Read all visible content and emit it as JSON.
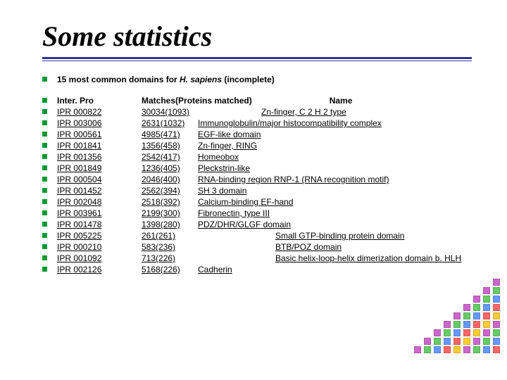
{
  "title": "Some statistics",
  "intro_prefix": "15 most common domains for ",
  "intro_italic": "H. sapiens",
  "intro_suffix": " (incomplete)",
  "header": {
    "c1": "Inter. Pro",
    "c2": "Matches(Proteins matched)",
    "c3": "Name"
  },
  "rows": [
    {
      "id": "IPR 000822",
      "m": "30034(1093)",
      "name": "Zn-finger, C 2 H 2 type",
      "name_indent": 90
    },
    {
      "id": "IPR 003006",
      "m": "2631(1032)",
      "name": "Immunoglobulin/major histocompatibility complex",
      "name_indent": 0
    },
    {
      "id": "IPR 000561",
      "m": "4985(471)",
      "name": "EGF-like domain",
      "name_indent": 0
    },
    {
      "id": "IPR 001841",
      "m": "1356(458)",
      "name": "Zn-finger, RING",
      "name_indent": 0
    },
    {
      "id": "IPR 001356",
      "m": "2542(417)",
      "name": "Homeobox",
      "name_indent": 0
    },
    {
      "id": "IPR 001849",
      "m": "1236(405)",
      "name": "Pleckstrin-like",
      "name_indent": 0
    },
    {
      "id": "IPR 000504",
      "m": "2046(400)",
      "name": "RNA-binding region RNP-1 (RNA recognition motif)",
      "name_indent": 0
    },
    {
      "id": "IPR 001452",
      "m": "2562(394)",
      "name": "SH 3 domain",
      "name_indent": 0
    },
    {
      "id": "IPR 002048",
      "m": "2518(392)",
      "name": "Calcium-binding EF-hand",
      "name_indent": 0
    },
    {
      "id": "IPR 003961",
      "m": "2199(300)",
      "name": "Fibronectin, type III",
      "name_indent": 0
    },
    {
      "id": "IPR 001478",
      "m": "1398(280)",
      "name": "PDZ/DHR/GLGF domain",
      "name_indent": 0
    },
    {
      "id": "IPR 005225",
      "m": "261(261)",
      "name": "Small GTP-binding protein domain",
      "name_indent": 110
    },
    {
      "id": "IPR 000210",
      "m": "583(236)",
      "name": "BTB/POZ domain",
      "name_indent": 110
    },
    {
      "id": "IPR 001092",
      "m": "713(226)",
      "name": "Basic helix-loop-helix dimerization domain b. HLH",
      "name_indent": 110
    },
    {
      "id": "IPR 002126",
      "m": "5168(226)",
      "name": "Cadherin",
      "name_indent": 0
    }
  ],
  "colors": {
    "bullet": "#009933",
    "rule": "#333399"
  },
  "deco": {
    "column_colors": [
      "#cc66cc",
      "#66cc66",
      "#6699ff",
      "#ff6666",
      "#ffcc33"
    ],
    "row_counts": [
      1,
      2,
      3,
      4,
      5,
      6,
      7,
      8,
      9
    ]
  }
}
